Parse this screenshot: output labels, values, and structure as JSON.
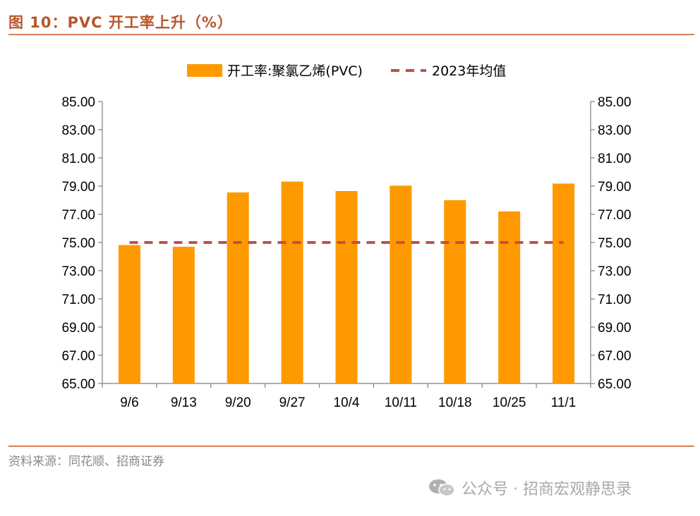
{
  "figure": {
    "title": "图 10：PVC 开工率上升（%）",
    "source": "资料来源：同花顺、招商证券",
    "watermark": "公众号 · 招商宏观静思录",
    "watermark_icon": "wechat-icon"
  },
  "chart_data": {
    "type": "bar",
    "categories": [
      "9/6",
      "9/13",
      "9/20",
      "9/27",
      "10/4",
      "10/11",
      "10/18",
      "10/25",
      "11/1"
    ],
    "series": [
      {
        "name": "开工率:聚氯乙烯(PVC)",
        "type": "bar",
        "color": "#ff9900",
        "values": [
          74.82,
          74.7,
          78.55,
          79.32,
          78.65,
          79.03,
          78.0,
          77.2,
          79.18
        ]
      },
      {
        "name": "2023年均值",
        "type": "line",
        "style": "dashed",
        "color": "#c0504d",
        "values": [
          75.0,
          75.0,
          75.0,
          75.0,
          75.0,
          75.0,
          75.0,
          75.0,
          75.0
        ]
      }
    ],
    "ylim": [
      65,
      85
    ],
    "yticks": [
      "65.00",
      "67.00",
      "69.00",
      "71.00",
      "73.00",
      "75.00",
      "77.00",
      "79.00",
      "81.00",
      "83.00",
      "85.00"
    ],
    "secondary_yticks": [
      "65.00",
      "67.00",
      "69.00",
      "71.00",
      "73.00",
      "75.00",
      "77.00",
      "79.00",
      "81.00",
      "83.00",
      "85.00"
    ],
    "grid": false,
    "legend_position": "top-center"
  }
}
